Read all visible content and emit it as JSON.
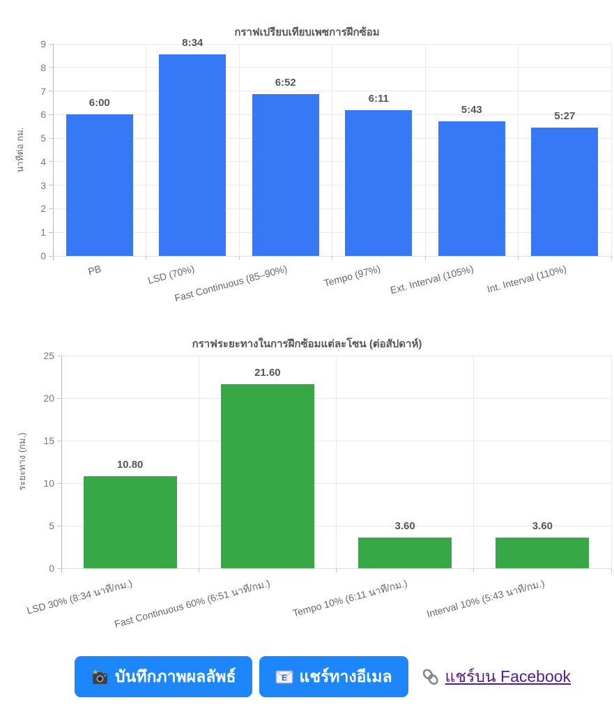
{
  "chart_data": [
    {
      "type": "bar",
      "title": "กราฟเปรียบเทียบเพซการฝึกซ้อม",
      "ylabel": "นาทีต่อ กม.",
      "xlabel": "",
      "categories": [
        "PB",
        "LSD (70%)",
        "Fast Continuous (85–90%)",
        "Tempo (97%)",
        "Ext. Interval (105%)",
        "Int. Interval (110%)"
      ],
      "values": [
        6.0,
        8.57,
        6.87,
        6.18,
        5.72,
        5.45
      ],
      "value_labels": [
        "6:00",
        "8:34",
        "6:52",
        "6:11",
        "5:43",
        "5:27"
      ],
      "ylim": [
        0,
        9
      ],
      "ytick_step": 1,
      "yticks": [
        0,
        1,
        2,
        3,
        4,
        5,
        6,
        7,
        8,
        9
      ],
      "grid": true,
      "legend": "none",
      "bar_color": "#3778f7"
    },
    {
      "type": "bar",
      "title": "กราฟระยะทางในการฝึกซ้อมแต่ละโซน (ต่อสัปดาห์)",
      "ylabel": "ระยะทาง (กม.)",
      "xlabel": "",
      "categories": [
        "LSD 30% (8:34 นาที/กม.)",
        "Fast Continuous 60% (6:51 นาที/กม.)",
        "Tempo 10% (6:11 นาที/กม.)",
        "Interval 10% (5:43 นาที/กม.)"
      ],
      "values": [
        10.8,
        21.6,
        3.6,
        3.6
      ],
      "value_labels": [
        "10.80",
        "21.60",
        "3.60",
        "3.60"
      ],
      "ylim": [
        0,
        25
      ],
      "ytick_step": 5,
      "yticks": [
        0,
        5,
        10,
        15,
        20,
        25
      ],
      "grid": true,
      "legend": "none",
      "bar_color": "#38a846"
    }
  ],
  "actions": {
    "save_image_label": "บันทึกภาพผลลัพธ์",
    "share_email_label": "แชร์ทางอีเมล",
    "share_facebook_label": "แชร์บน Facebook",
    "button_color": "#1d86fb",
    "link_color": "#551a8b"
  },
  "icons": {
    "save_image": "camera-icon",
    "share_email": "email-icon",
    "share_facebook": "link-icon"
  }
}
